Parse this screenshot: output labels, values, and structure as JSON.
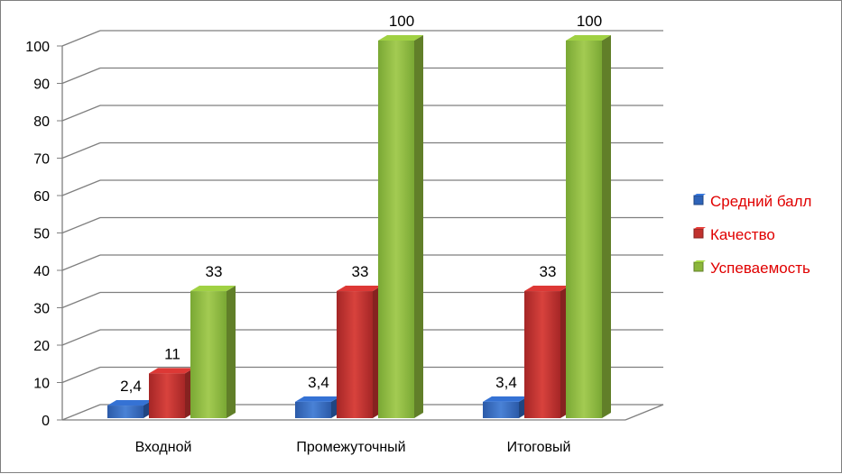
{
  "chart_data": {
    "type": "bar",
    "categories": [
      "Входной",
      "Промежуточный",
      "Итоговый"
    ],
    "series": [
      {
        "name": "Средний балл",
        "values": [
          2.4,
          3.4,
          3.4
        ],
        "labels": [
          "2,4",
          "3,4",
          "3,4"
        ],
        "color": "#2e63b8"
      },
      {
        "name": "Качество",
        "values": [
          11,
          33,
          33
        ],
        "labels": [
          "11",
          "33",
          "33"
        ],
        "color": "#c0312e"
      },
      {
        "name": "Успеваемость",
        "values": [
          33,
          100,
          100
        ],
        "labels": [
          "33",
          "100",
          "100"
        ],
        "color": "#8bb63a"
      }
    ],
    "ylim": [
      0,
      100
    ],
    "yticks": [
      "0",
      "10",
      "20",
      "30",
      "40",
      "50",
      "60",
      "70",
      "80",
      "90",
      "100"
    ],
    "grid": true,
    "legend_position": "right",
    "legend_text_color": "#e00000",
    "title": "",
    "xlabel": "",
    "ylabel": ""
  }
}
